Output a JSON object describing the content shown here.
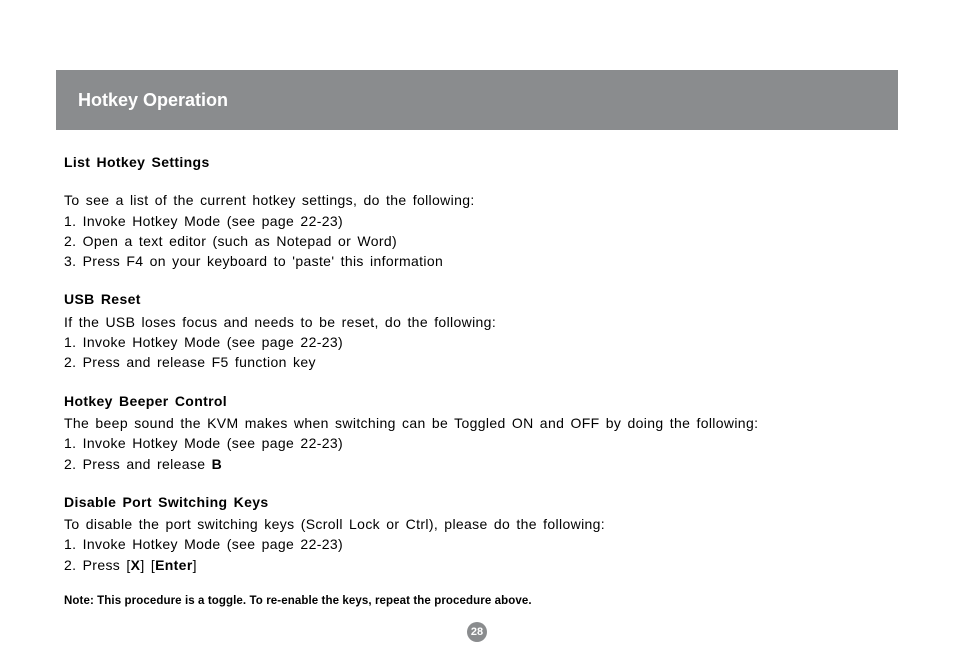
{
  "header": {
    "title": "Hotkey Operation"
  },
  "sections": {
    "list_settings": {
      "heading": "List Hotkey Settings",
      "intro": "To see a list of the current hotkey settings, do the following:",
      "step1": "1.  Invoke Hotkey Mode (see page 22-23)",
      "step2": "2.  Open a text editor (such as Notepad or Word)",
      "step3": "3.  Press F4 on your keyboard to 'paste' this information"
    },
    "usb_reset": {
      "heading": "USB Reset",
      "intro": "If the USB loses focus and needs to be reset, do the following:",
      "step1": "1.  Invoke Hotkey Mode (see page 22-23)",
      "step2": "2.  Press and release F5 function key"
    },
    "beeper": {
      "heading": "Hotkey Beeper Control",
      "intro": "The beep sound the KVM makes when switching can be Toggled ON and OFF by doing the following:",
      "step1": "1.  Invoke Hotkey Mode (see page 22-23)",
      "step2_prefix": "2.  Press and release ",
      "step2_bold": "B"
    },
    "disable_port": {
      "heading": "Disable Port Switching Keys",
      "intro": "To disable the port switching keys (Scroll Lock or Ctrl), please do the following:",
      "step1": "1.  Invoke Hotkey Mode (see page 22-23)",
      "step2_prefix": "2.  Press [",
      "step2_bold1": "X",
      "step2_mid": "] [",
      "step2_bold2": "Enter",
      "step2_suffix": "]"
    }
  },
  "note": "Note: This procedure is a toggle. To re-enable the keys, repeat the procedure above.",
  "page_number": "28",
  "colors": {
    "header_bg": "#8a8c8e",
    "header_text": "#ffffff",
    "body_text": "#000000",
    "page_bg": "#ffffff"
  }
}
